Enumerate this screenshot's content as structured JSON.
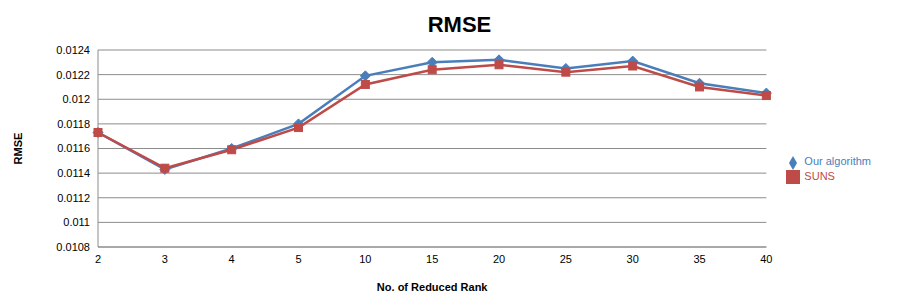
{
  "chart_data": {
    "type": "line",
    "title": "RMSE",
    "x_label": "No. of Reduced Rank",
    "y_label": "RMSE",
    "categories": [
      "2",
      "3",
      "4",
      "5",
      "10",
      "15",
      "20",
      "25",
      "30",
      "35",
      "40"
    ],
    "series": [
      {
        "name": "Our algorithm",
        "color": "#4a7ebb",
        "marker": "diamond",
        "values": [
          0.01173,
          0.01143,
          0.0116,
          0.0118,
          0.01219,
          0.0123,
          0.01232,
          0.01225,
          0.01231,
          0.01213,
          0.01205
        ]
      },
      {
        "name": "SUNS",
        "color": "#be4b48",
        "marker": "square",
        "values": [
          0.01173,
          0.01144,
          0.01159,
          0.01177,
          0.01212,
          0.01224,
          0.01228,
          0.01222,
          0.01227,
          0.0121,
          0.01203
        ]
      }
    ],
    "ylim": [
      0.0108,
      0.0124
    ],
    "yticks": [
      0.0108,
      0.011,
      0.0112,
      0.0114,
      0.0116,
      0.0118,
      0.012,
      0.0122,
      0.0124
    ],
    "grid": true,
    "legend": "right"
  }
}
